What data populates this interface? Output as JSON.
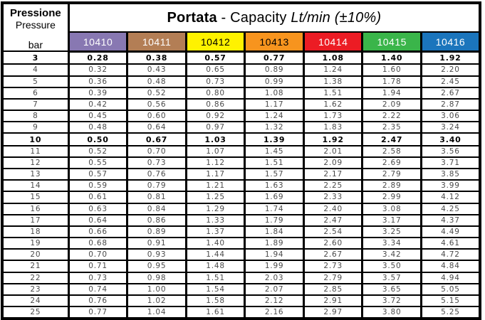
{
  "header": {
    "pressure_title": "Pressione",
    "pressure_subtitle": "Pressure",
    "pressure_unit": "bar",
    "title_bold": "Portata",
    "title_mid": " - Capacity ",
    "title_italic": "Lt/min (±10%)"
  },
  "models": [
    {
      "label": "10410",
      "color": "#8878B2",
      "text_color": "#FFFFFF"
    },
    {
      "label": "10411",
      "color": "#B37E55",
      "text_color": "#FFFFFF"
    },
    {
      "label": "10412",
      "color": "#FFF200",
      "text_color": "#000000"
    },
    {
      "label": "10413",
      "color": "#F7941E",
      "text_color": "#000000"
    },
    {
      "label": "10414",
      "color": "#EC1C24",
      "text_color": "#FFFFFF"
    },
    {
      "label": "10415",
      "color": "#3AB54A",
      "text_color": "#FFFFFF"
    },
    {
      "label": "10416",
      "color": "#1B75BC",
      "text_color": "#FFFFFF"
    }
  ],
  "chart_data": {
    "type": "table",
    "title": "Portata - Capacity Lt/min (±10%)",
    "xlabel": "Pressione / Pressure (bar)",
    "ylabel": "Capacity Lt/min",
    "categories": [
      "10410",
      "10411",
      "10412",
      "10413",
      "10414",
      "10415",
      "10416"
    ],
    "rows": [
      {
        "pressure": "3",
        "bold": true,
        "values": [
          "0.28",
          "0.38",
          "0.57",
          "0.77",
          "1.08",
          "1.40",
          "1.92"
        ]
      },
      {
        "pressure": "4",
        "bold": false,
        "values": [
          "0.32",
          "0.43",
          "0.65",
          "0.89",
          "1.24",
          "1.60",
          "2.20"
        ]
      },
      {
        "pressure": "5",
        "bold": false,
        "values": [
          "0.36",
          "0.48",
          "0.73",
          "0.99",
          "1.38",
          "1.78",
          "2.45"
        ]
      },
      {
        "pressure": "6",
        "bold": false,
        "values": [
          "0.39",
          "0.52",
          "0.80",
          "1.08",
          "1.51",
          "1.94",
          "2.67"
        ]
      },
      {
        "pressure": "7",
        "bold": false,
        "values": [
          "0.42",
          "0.56",
          "0.86",
          "1.17",
          "1.62",
          "2.09",
          "2.87"
        ]
      },
      {
        "pressure": "8",
        "bold": false,
        "values": [
          "0.45",
          "0.60",
          "0.92",
          "1.24",
          "1.73",
          "2.22",
          "3.06"
        ]
      },
      {
        "pressure": "9",
        "bold": false,
        "values": [
          "0.48",
          "0.64",
          "0.97",
          "1.32",
          "1.83",
          "2.35",
          "3.24"
        ]
      },
      {
        "pressure": "10",
        "bold": true,
        "values": [
          "0.50",
          "0.67",
          "1.03",
          "1.39",
          "1.92",
          "2.47",
          "3.40"
        ]
      },
      {
        "pressure": "11",
        "bold": false,
        "values": [
          "0.52",
          "0.70",
          "1.07",
          "1.45",
          "2.01",
          "2.58",
          "3.56"
        ]
      },
      {
        "pressure": "12",
        "bold": false,
        "values": [
          "0.55",
          "0.73",
          "1.12",
          "1.51",
          "2.09",
          "2.69",
          "3.71"
        ]
      },
      {
        "pressure": "13",
        "bold": false,
        "values": [
          "0.57",
          "0.76",
          "1.17",
          "1.57",
          "2.17",
          "2.79",
          "3.85"
        ]
      },
      {
        "pressure": "14",
        "bold": false,
        "values": [
          "0.59",
          "0.79",
          "1.21",
          "1.63",
          "2.25",
          "2.89",
          "3.99"
        ]
      },
      {
        "pressure": "15",
        "bold": false,
        "values": [
          "0.61",
          "0.81",
          "1.25",
          "1.69",
          "2.33",
          "2.99",
          "4.12"
        ]
      },
      {
        "pressure": "16",
        "bold": false,
        "values": [
          "0.63",
          "0.84",
          "1.29",
          "1.74",
          "2.40",
          "3.08",
          "4.25"
        ]
      },
      {
        "pressure": "17",
        "bold": false,
        "values": [
          "0.64",
          "0.86",
          "1.33",
          "1.79",
          "2.47",
          "3.17",
          "4.37"
        ]
      },
      {
        "pressure": "18",
        "bold": false,
        "values": [
          "0.66",
          "0.89",
          "1.37",
          "1.84",
          "2.54",
          "3.25",
          "4.49"
        ]
      },
      {
        "pressure": "19",
        "bold": false,
        "values": [
          "0.68",
          "0.91",
          "1.40",
          "1.89",
          "2.60",
          "3.34",
          "4.61"
        ]
      },
      {
        "pressure": "20",
        "bold": false,
        "values": [
          "0.70",
          "0.93",
          "1.44",
          "1.94",
          "2.67",
          "3.42",
          "4.72"
        ]
      },
      {
        "pressure": "21",
        "bold": false,
        "values": [
          "0.71",
          "0.95",
          "1.48",
          "1.99",
          "2.73",
          "3.50",
          "4.84"
        ]
      },
      {
        "pressure": "22",
        "bold": false,
        "values": [
          "0.73",
          "0.98",
          "1.51",
          "2.03",
          "2.79",
          "3.57",
          "4.94"
        ]
      },
      {
        "pressure": "23",
        "bold": false,
        "values": [
          "0.74",
          "1.00",
          "1.54",
          "2.07",
          "2.85",
          "3.65",
          "5.05"
        ]
      },
      {
        "pressure": "24",
        "bold": false,
        "values": [
          "0.76",
          "1.02",
          "1.58",
          "2.12",
          "2.91",
          "3.72",
          "5.15"
        ]
      },
      {
        "pressure": "25",
        "bold": false,
        "values": [
          "0.77",
          "1.04",
          "1.61",
          "2.16",
          "2.97",
          "3.80",
          "5.25"
        ]
      }
    ]
  }
}
